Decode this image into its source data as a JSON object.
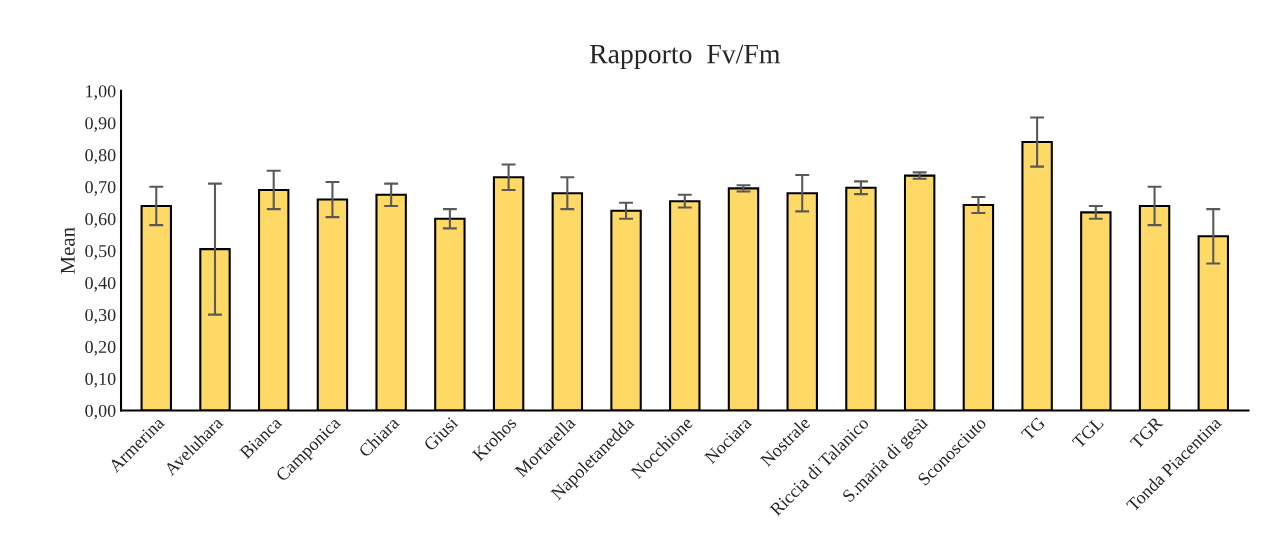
{
  "chart_data": {
    "type": "bar",
    "title": "Rapporto  Fv/Fm",
    "ylabel": "Mean",
    "categories": [
      "Armerina",
      "Aveluhara",
      "Bianca",
      "Camponica",
      "Chiara",
      "Giusi",
      "Krohos",
      "Mortarella",
      "Napoletanedda",
      "Nocchione",
      "Nociara",
      "Nostrale",
      "Riccia di Talanico",
      "S.maria di gesù",
      "Sconosciuto",
      "TG",
      "TGL",
      "TGR",
      "Tonda Piacentina"
    ],
    "values": [
      0.64,
      0.505,
      0.69,
      0.66,
      0.675,
      0.6,
      0.73,
      0.68,
      0.625,
      0.655,
      0.695,
      0.68,
      0.697,
      0.735,
      0.643,
      0.84,
      0.62,
      0.64,
      0.545
    ],
    "errors": [
      0.06,
      0.205,
      0.06,
      0.055,
      0.035,
      0.03,
      0.04,
      0.05,
      0.025,
      0.02,
      0.01,
      0.057,
      0.02,
      0.01,
      0.025,
      0.077,
      0.02,
      0.06,
      0.085
    ],
    "color": "#ffd966",
    "ylim": [
      0,
      1
    ],
    "yticks": [
      {
        "value": 0,
        "label": "0,00"
      },
      {
        "value": 0.1,
        "label": "0,10"
      },
      {
        "value": 0.2,
        "label": "0,20"
      },
      {
        "value": 0.3,
        "label": "0,30"
      },
      {
        "value": 0.4,
        "label": "0,40"
      },
      {
        "value": 0.5,
        "label": "0,50"
      },
      {
        "value": 0.6,
        "label": "0,60"
      },
      {
        "value": 0.7,
        "label": "0,70"
      },
      {
        "value": 0.8,
        "label": "0,80"
      },
      {
        "value": 0.9,
        "label": "0,90"
      },
      {
        "value": 1,
        "label": "1,00"
      }
    ],
    "grid": false
  }
}
